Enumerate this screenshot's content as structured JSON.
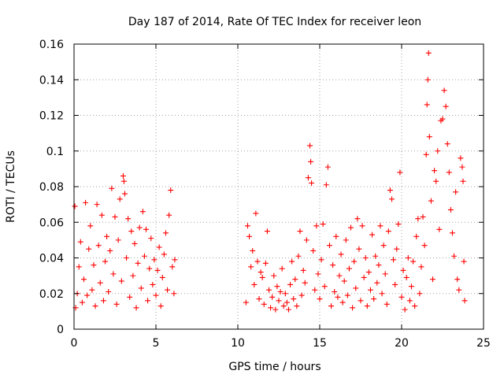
{
  "chart_data": {
    "type": "scatter",
    "title": "Day 187 of 2014, Rate Of TEC Index for receiver leon",
    "xlabel": "GPS time / hours",
    "ylabel": "ROTI / TECUs",
    "xlim": [
      0,
      25
    ],
    "ylim": [
      0,
      0.16
    ],
    "xticks": [
      {
        "value": 0,
        "label": "0"
      },
      {
        "value": 5,
        "label": "5"
      },
      {
        "value": 10,
        "label": "10"
      },
      {
        "value": 15,
        "label": "15"
      },
      {
        "value": 20,
        "label": "20"
      },
      {
        "value": 25,
        "label": "25"
      }
    ],
    "yticks": [
      {
        "value": 0,
        "label": "0"
      },
      {
        "value": 0.02,
        "label": "0.02"
      },
      {
        "value": 0.04,
        "label": "0.04"
      },
      {
        "value": 0.06,
        "label": "0.06"
      },
      {
        "value": 0.08,
        "label": "0.08"
      },
      {
        "value": 0.1,
        "label": "0.1"
      },
      {
        "value": 0.12,
        "label": "0.12"
      },
      {
        "value": 0.14,
        "label": "0.14"
      },
      {
        "value": 0.16,
        "label": "0.16"
      }
    ],
    "grid": true,
    "marker": "+",
    "series": [
      {
        "name": "ROTI",
        "color": "#ff0000",
        "note": "dense scatter; representative sample of points read from the plot (x in hours, y in TECU/min)",
        "points": [
          [
            0.05,
            0.069
          ],
          [
            0.1,
            0.012
          ],
          [
            0.2,
            0.02
          ],
          [
            0.3,
            0.035
          ],
          [
            0.4,
            0.049
          ],
          [
            0.5,
            0.015
          ],
          [
            0.6,
            0.028
          ],
          [
            0.7,
            0.071
          ],
          [
            0.8,
            0.019
          ],
          [
            0.9,
            0.045
          ],
          [
            1.0,
            0.058
          ],
          [
            1.1,
            0.022
          ],
          [
            1.2,
            0.036
          ],
          [
            1.3,
            0.013
          ],
          [
            1.4,
            0.07
          ],
          [
            1.5,
            0.047
          ],
          [
            1.6,
            0.026
          ],
          [
            1.7,
            0.064
          ],
          [
            1.8,
            0.016
          ],
          [
            1.9,
            0.038
          ],
          [
            2.0,
            0.052
          ],
          [
            2.1,
            0.021
          ],
          [
            2.2,
            0.044
          ],
          [
            2.3,
            0.079
          ],
          [
            2.4,
            0.031
          ],
          [
            2.5,
            0.063
          ],
          [
            2.6,
            0.014
          ],
          [
            2.7,
            0.05
          ],
          [
            2.8,
            0.073
          ],
          [
            2.9,
            0.027
          ],
          [
            3.0,
            0.086
          ],
          [
            3.05,
            0.083
          ],
          [
            3.1,
            0.076
          ],
          [
            3.2,
            0.04
          ],
          [
            3.3,
            0.062
          ],
          [
            3.4,
            0.018
          ],
          [
            3.5,
            0.055
          ],
          [
            3.6,
            0.03
          ],
          [
            3.7,
            0.048
          ],
          [
            3.8,
            0.012
          ],
          [
            3.9,
            0.037
          ],
          [
            4.0,
            0.057
          ],
          [
            4.1,
            0.023
          ],
          [
            4.2,
            0.066
          ],
          [
            4.3,
            0.041
          ],
          [
            4.4,
            0.056
          ],
          [
            4.5,
            0.016
          ],
          [
            4.6,
            0.034
          ],
          [
            4.7,
            0.051
          ],
          [
            4.8,
            0.025
          ],
          [
            4.9,
            0.039
          ],
          [
            5.0,
            0.019
          ],
          [
            5.1,
            0.033
          ],
          [
            5.2,
            0.046
          ],
          [
            5.3,
            0.013
          ],
          [
            5.4,
            0.029
          ],
          [
            5.5,
            0.042
          ],
          [
            5.6,
            0.054
          ],
          [
            5.7,
            0.022
          ],
          [
            5.8,
            0.064
          ],
          [
            5.9,
            0.078
          ],
          [
            6.0,
            0.035
          ],
          [
            6.1,
            0.02
          ],
          [
            6.15,
            0.039
          ],
          [
            10.5,
            0.015
          ],
          [
            10.6,
            0.058
          ],
          [
            10.7,
            0.052
          ],
          [
            10.8,
            0.035
          ],
          [
            10.9,
            0.044
          ],
          [
            11.0,
            0.025
          ],
          [
            11.1,
            0.065
          ],
          [
            11.2,
            0.038
          ],
          [
            11.3,
            0.017
          ],
          [
            11.4,
            0.032
          ],
          [
            11.5,
            0.029
          ],
          [
            11.6,
            0.014
          ],
          [
            11.7,
            0.037
          ],
          [
            11.8,
            0.055
          ],
          [
            11.9,
            0.022
          ],
          [
            12.0,
            0.012
          ],
          [
            12.1,
            0.018
          ],
          [
            12.2,
            0.03
          ],
          [
            12.3,
            0.011
          ],
          [
            12.4,
            0.024
          ],
          [
            12.5,
            0.016
          ],
          [
            12.6,
            0.021
          ],
          [
            12.7,
            0.034
          ],
          [
            12.8,
            0.013
          ],
          [
            12.9,
            0.02
          ],
          [
            13.0,
            0.015
          ],
          [
            13.1,
            0.011
          ],
          [
            13.2,
            0.025
          ],
          [
            13.3,
            0.038
          ],
          [
            13.4,
            0.017
          ],
          [
            13.5,
            0.028
          ],
          [
            13.6,
            0.013
          ],
          [
            13.7,
            0.041
          ],
          [
            13.8,
            0.055
          ],
          [
            13.9,
            0.019
          ],
          [
            14.0,
            0.033
          ],
          [
            14.1,
            0.026
          ],
          [
            14.2,
            0.05
          ],
          [
            14.3,
            0.085
          ],
          [
            14.4,
            0.103
          ],
          [
            14.45,
            0.094
          ],
          [
            14.5,
            0.082
          ],
          [
            14.6,
            0.044
          ],
          [
            14.7,
            0.022
          ],
          [
            14.8,
            0.058
          ],
          [
            14.9,
            0.031
          ],
          [
            15.0,
            0.017
          ],
          [
            15.1,
            0.039
          ],
          [
            15.2,
            0.059
          ],
          [
            15.3,
            0.024
          ],
          [
            15.4,
            0.081
          ],
          [
            15.5,
            0.091
          ],
          [
            15.6,
            0.047
          ],
          [
            15.7,
            0.013
          ],
          [
            15.8,
            0.036
          ],
          [
            15.9,
            0.021
          ],
          [
            16.0,
            0.052
          ],
          [
            16.1,
            0.018
          ],
          [
            16.2,
            0.03
          ],
          [
            16.3,
            0.042
          ],
          [
            16.4,
            0.015
          ],
          [
            16.5,
            0.027
          ],
          [
            16.6,
            0.05
          ],
          [
            16.7,
            0.019
          ],
          [
            16.8,
            0.034
          ],
          [
            16.9,
            0.057
          ],
          [
            17.0,
            0.012
          ],
          [
            17.1,
            0.038
          ],
          [
            17.2,
            0.023
          ],
          [
            17.3,
            0.062
          ],
          [
            17.4,
            0.045
          ],
          [
            17.5,
            0.016
          ],
          [
            17.6,
            0.058
          ],
          [
            17.7,
            0.029
          ],
          [
            17.8,
            0.04
          ],
          [
            17.9,
            0.013
          ],
          [
            18.0,
            0.032
          ],
          [
            18.1,
            0.022
          ],
          [
            18.2,
            0.053
          ],
          [
            18.3,
            0.017
          ],
          [
            18.4,
            0.041
          ],
          [
            18.5,
            0.026
          ],
          [
            18.6,
            0.036
          ],
          [
            18.7,
            0.058
          ],
          [
            18.8,
            0.02
          ],
          [
            18.9,
            0.047
          ],
          [
            19.0,
            0.031
          ],
          [
            19.1,
            0.014
          ],
          [
            19.2,
            0.055
          ],
          [
            19.3,
            0.078
          ],
          [
            19.4,
            0.073
          ],
          [
            19.5,
            0.039
          ],
          [
            19.6,
            0.025
          ],
          [
            19.7,
            0.045
          ],
          [
            19.8,
            0.059
          ],
          [
            19.9,
            0.088
          ],
          [
            20.0,
            0.018
          ],
          [
            20.1,
            0.033
          ],
          [
            20.2,
            0.011
          ],
          [
            20.3,
            0.029
          ],
          [
            20.4,
            0.04
          ],
          [
            20.5,
            0.016
          ],
          [
            20.6,
            0.024
          ],
          [
            20.7,
            0.038
          ],
          [
            20.8,
            0.013
          ],
          [
            20.9,
            0.052
          ],
          [
            21.0,
            0.062
          ],
          [
            21.1,
            0.02
          ],
          [
            21.2,
            0.035
          ],
          [
            21.3,
            0.063
          ],
          [
            21.4,
            0.047
          ],
          [
            21.5,
            0.098
          ],
          [
            21.55,
            0.126
          ],
          [
            21.6,
            0.14
          ],
          [
            21.65,
            0.155
          ],
          [
            21.7,
            0.108
          ],
          [
            21.8,
            0.072
          ],
          [
            21.9,
            0.028
          ],
          [
            22.0,
            0.089
          ],
          [
            22.1,
            0.083
          ],
          [
            22.2,
            0.1
          ],
          [
            22.3,
            0.056
          ],
          [
            22.4,
            0.117
          ],
          [
            22.5,
            0.118
          ],
          [
            22.6,
            0.134
          ],
          [
            22.7,
            0.125
          ],
          [
            22.8,
            0.104
          ],
          [
            22.9,
            0.088
          ],
          [
            23.0,
            0.067
          ],
          [
            23.1,
            0.054
          ],
          [
            23.2,
            0.041
          ],
          [
            23.3,
            0.077
          ],
          [
            23.4,
            0.028
          ],
          [
            23.5,
            0.022
          ],
          [
            23.6,
            0.096
          ],
          [
            23.7,
            0.091
          ],
          [
            23.75,
            0.083
          ],
          [
            23.8,
            0.038
          ],
          [
            23.85,
            0.016
          ]
        ]
      }
    ]
  }
}
